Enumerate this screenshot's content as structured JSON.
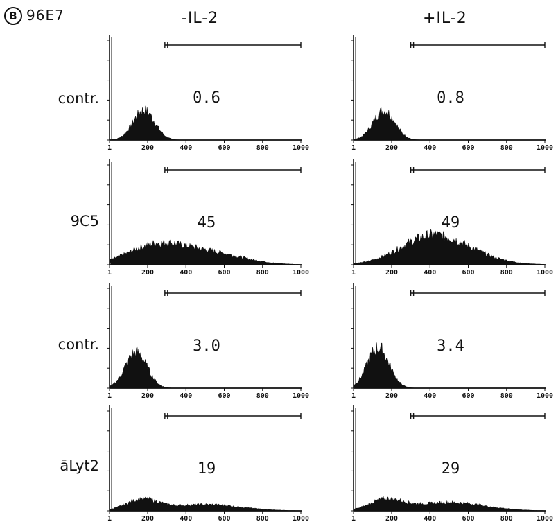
{
  "figure": {
    "panel_letter": "B",
    "panel_name": "96E7",
    "column_headers": [
      "-IL-2",
      "+IL-2"
    ]
  },
  "chart_data": {
    "type": "area",
    "x_ticks": [
      "1",
      "200",
      "400",
      "600",
      "800",
      "1000"
    ],
    "xlim": [
      1,
      1000
    ],
    "gate_start": 300,
    "gate_end": 1000,
    "rows": [
      {
        "label": "contr.",
        "panels": [
          {
            "value": "0.6",
            "gate_start": 290,
            "peak": 0.28,
            "spread": 80,
            "center": 180,
            "tail": 0.0
          },
          {
            "value": "0.8",
            "gate_start": 300,
            "peak": 0.28,
            "spread": 80,
            "center": 160,
            "tail": 0.0
          }
        ]
      },
      {
        "label": "9C5",
        "panels": [
          {
            "value": "45",
            "gate_start": 290,
            "peak": 0.16,
            "spread": 200,
            "center": 230,
            "tail": 0.12
          },
          {
            "value": "49",
            "gate_start": 300,
            "peak": 0.16,
            "spread": 220,
            "center": 380,
            "tail": 0.14
          }
        ]
      },
      {
        "label": "contr.",
        "panels": [
          {
            "value": "3.0",
            "gate_start": 290,
            "peak": 0.34,
            "spread": 80,
            "center": 140,
            "tail": 0.0
          },
          {
            "value": "3.4",
            "gate_start": 300,
            "peak": 0.38,
            "spread": 80,
            "center": 130,
            "tail": 0.0
          }
        ]
      },
      {
        "label": "āLyt2",
        "panels": [
          {
            "value": "19",
            "gate_start": 290,
            "peak": 0.1,
            "spread": 120,
            "center": 170,
            "tail": 0.06
          },
          {
            "value": "29",
            "gate_start": 300,
            "peak": 0.1,
            "spread": 120,
            "center": 170,
            "tail": 0.08
          }
        ]
      }
    ]
  }
}
